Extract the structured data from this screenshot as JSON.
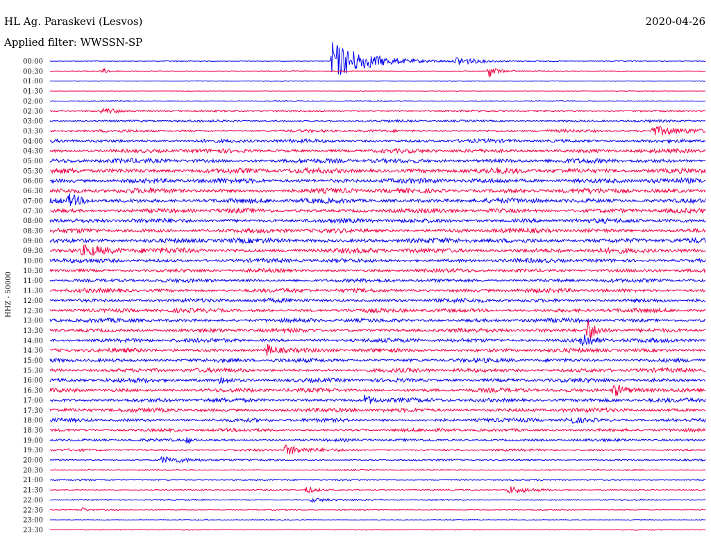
{
  "header": {
    "station": "HL Ag. Paraskevi (Lesvos)",
    "filter": "Applied filter: WWSSN-SP",
    "date": "2020-04-26"
  },
  "chart_data": {
    "type": "line",
    "title": "HL Ag. Paraskevi (Lesvos)",
    "subtitle": "Applied filter: WWSSN-SP",
    "ylabel": "HHZ - 50000",
    "xlabel": "",
    "grid": false,
    "legend": "none",
    "row_times": [
      "00:00",
      "00:30",
      "01:00",
      "01:30",
      "02:00",
      "02:30",
      "03:00",
      "03:30",
      "04:00",
      "04:30",
      "05:00",
      "05:30",
      "06:00",
      "06:30",
      "07:00",
      "07:30",
      "08:00",
      "08:30",
      "09:00",
      "09:30",
      "10:00",
      "10:30",
      "11:00",
      "11:30",
      "12:00",
      "12:30",
      "13:00",
      "13:30",
      "14:00",
      "14:30",
      "15:00",
      "15:30",
      "16:00",
      "16:30",
      "17:00",
      "17:30",
      "18:00",
      "18:30",
      "19:00",
      "19:30",
      "20:00",
      "20:30",
      "21:00",
      "21:30",
      "22:00",
      "22:30",
      "23:00",
      "23:30"
    ],
    "trace_colors": [
      "#0000ee",
      "#ee0044"
    ],
    "row_noise_level": [
      0.1,
      0.1,
      0.08,
      0.06,
      0.12,
      0.2,
      0.25,
      0.3,
      0.4,
      0.45,
      0.5,
      0.6,
      0.55,
      0.55,
      0.55,
      0.5,
      0.5,
      0.5,
      0.55,
      0.55,
      0.45,
      0.4,
      0.4,
      0.45,
      0.45,
      0.45,
      0.45,
      0.45,
      0.45,
      0.45,
      0.45,
      0.45,
      0.45,
      0.45,
      0.45,
      0.45,
      0.4,
      0.35,
      0.3,
      0.25,
      0.2,
      0.15,
      0.15,
      0.15,
      0.15,
      0.12,
      0.1,
      0.1
    ],
    "events": [
      {
        "row": 0,
        "x": 0.43,
        "amp": 5.5,
        "dur": 0.08
      },
      {
        "row": 0,
        "x": 0.62,
        "amp": 1.2,
        "dur": 0.05
      },
      {
        "row": 1,
        "x": 0.67,
        "amp": 1.8,
        "dur": 0.02
      },
      {
        "row": 1,
        "x": 0.08,
        "amp": 0.6,
        "dur": 0.02
      },
      {
        "row": 5,
        "x": 0.08,
        "amp": 0.8,
        "dur": 0.04
      },
      {
        "row": 7,
        "x": 0.92,
        "amp": 1.2,
        "dur": 0.1
      },
      {
        "row": 14,
        "x": 0.03,
        "amp": 1.5,
        "dur": 0.02
      },
      {
        "row": 19,
        "x": 0.05,
        "amp": 1.2,
        "dur": 0.06
      },
      {
        "row": 27,
        "x": 0.82,
        "amp": 3.5,
        "dur": 0.02
      },
      {
        "row": 28,
        "x": 0.81,
        "amp": 3.0,
        "dur": 0.02
      },
      {
        "row": 29,
        "x": 0.33,
        "amp": 1.8,
        "dur": 0.02
      },
      {
        "row": 32,
        "x": 0.26,
        "amp": 1.2,
        "dur": 0.02
      },
      {
        "row": 33,
        "x": 0.86,
        "amp": 1.8,
        "dur": 0.03
      },
      {
        "row": 34,
        "x": 0.48,
        "amp": 1.5,
        "dur": 0.02
      },
      {
        "row": 36,
        "x": 0.79,
        "amp": 1.0,
        "dur": 0.03
      },
      {
        "row": 38,
        "x": 0.21,
        "amp": 1.0,
        "dur": 0.01
      },
      {
        "row": 39,
        "x": 0.36,
        "amp": 1.5,
        "dur": 0.04
      },
      {
        "row": 40,
        "x": 0.17,
        "amp": 0.8,
        "dur": 0.07
      },
      {
        "row": 43,
        "x": 0.39,
        "amp": 1.0,
        "dur": 0.03
      },
      {
        "row": 43,
        "x": 0.7,
        "amp": 1.0,
        "dur": 0.05
      },
      {
        "row": 44,
        "x": 0.4,
        "amp": 0.6,
        "dur": 0.04
      },
      {
        "row": 45,
        "x": 0.05,
        "amp": 0.6,
        "dur": 0.01
      }
    ]
  }
}
